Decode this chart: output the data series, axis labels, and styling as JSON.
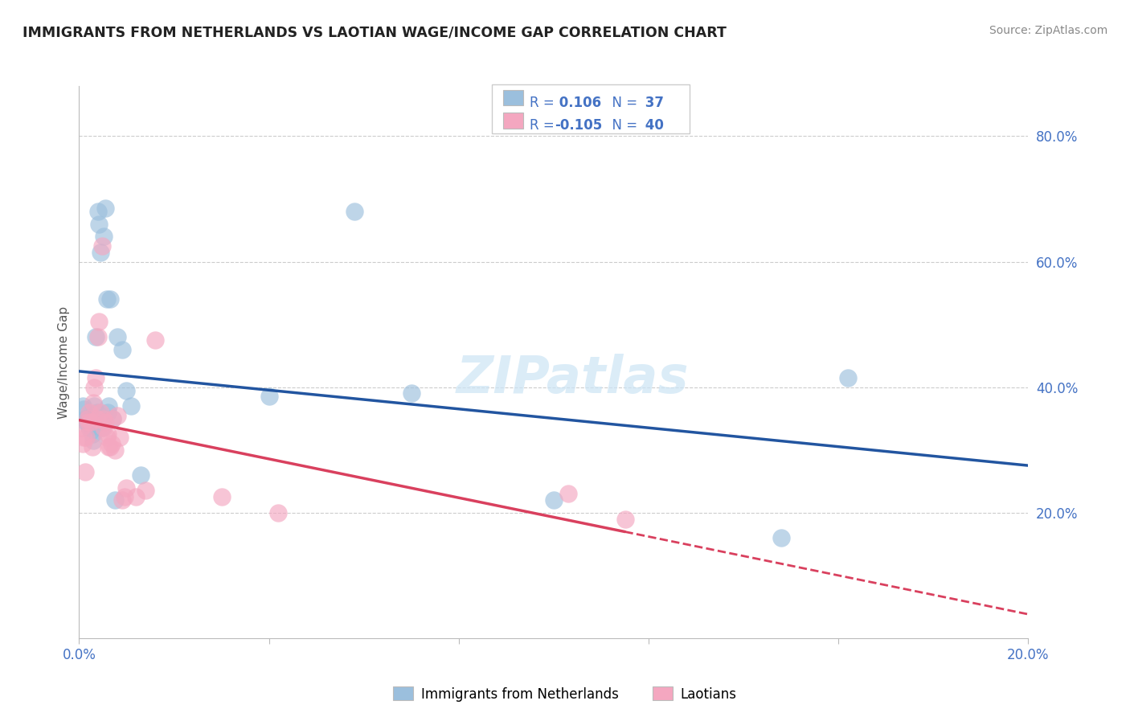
{
  "title": "IMMIGRANTS FROM NETHERLANDS VS LAOTIAN WAGE/INCOME GAP CORRELATION CHART",
  "source": "Source: ZipAtlas.com",
  "ylabel": "Wage/Income Gap",
  "xlim": [
    0.0,
    0.2
  ],
  "ylim": [
    0.0,
    0.88
  ],
  "x_tick_positions": [
    0.0,
    0.04,
    0.08,
    0.12,
    0.16,
    0.2
  ],
  "x_tick_labels": [
    "0.0%",
    "",
    "",
    "",
    "",
    "20.0%"
  ],
  "y_tick_positions": [
    0.2,
    0.4,
    0.6,
    0.8
  ],
  "y_tick_labels": [
    "20.0%",
    "40.0%",
    "60.0%",
    "80.0%"
  ],
  "legend_blue_r": "0.106",
  "legend_blue_n": "37",
  "legend_pink_r": "-0.105",
  "legend_pink_n": "40",
  "legend_label_blue": "Immigrants from Netherlands",
  "legend_label_pink": "Laotians",
  "blue_scatter_color": "#9bbfdd",
  "pink_scatter_color": "#f4a7c0",
  "blue_line_color": "#2255a0",
  "pink_line_color": "#d9405e",
  "watermark": "ZIPatlas",
  "watermark_color": "#cce5f5",
  "netherlands_x": [
    0.0008,
    0.001,
    0.0012,
    0.0015,
    0.0018,
    0.002,
    0.0022,
    0.0025,
    0.0028,
    0.003,
    0.0032,
    0.0035,
    0.0038,
    0.004,
    0.0042,
    0.0045,
    0.0048,
    0.005,
    0.0052,
    0.0055,
    0.0058,
    0.006,
    0.0062,
    0.0065,
    0.007,
    0.0075,
    0.008,
    0.009,
    0.01,
    0.011,
    0.013,
    0.04,
    0.058,
    0.07,
    0.1,
    0.148,
    0.162
  ],
  "netherlands_y": [
    0.37,
    0.365,
    0.35,
    0.345,
    0.35,
    0.34,
    0.335,
    0.33,
    0.325,
    0.315,
    0.37,
    0.48,
    0.36,
    0.68,
    0.66,
    0.615,
    0.335,
    0.345,
    0.64,
    0.685,
    0.54,
    0.36,
    0.37,
    0.54,
    0.35,
    0.22,
    0.48,
    0.46,
    0.395,
    0.37,
    0.26,
    0.385,
    0.68,
    0.39,
    0.22,
    0.16,
    0.415
  ],
  "laotian_x": [
    0.0005,
    0.0008,
    0.001,
    0.0012,
    0.0015,
    0.0018,
    0.002,
    0.0022,
    0.0025,
    0.0028,
    0.003,
    0.0032,
    0.0035,
    0.0038,
    0.004,
    0.0042,
    0.0045,
    0.0048,
    0.005,
    0.0052,
    0.0055,
    0.0058,
    0.006,
    0.0062,
    0.0065,
    0.0068,
    0.007,
    0.0075,
    0.008,
    0.0085,
    0.009,
    0.0095,
    0.01,
    0.012,
    0.014,
    0.016,
    0.03,
    0.042,
    0.103,
    0.115
  ],
  "laotian_y": [
    0.335,
    0.31,
    0.32,
    0.265,
    0.32,
    0.35,
    0.345,
    0.36,
    0.345,
    0.305,
    0.375,
    0.4,
    0.415,
    0.35,
    0.48,
    0.505,
    0.36,
    0.625,
    0.35,
    0.335,
    0.345,
    0.32,
    0.325,
    0.305,
    0.305,
    0.31,
    0.35,
    0.3,
    0.355,
    0.32,
    0.22,
    0.225,
    0.24,
    0.225,
    0.235,
    0.475,
    0.225,
    0.2,
    0.23,
    0.19
  ],
  "grid_color": "#cccccc",
  "spine_color": "#bbbbbb",
  "tick_label_color": "#4472c4",
  "ylabel_color": "#555555",
  "title_color": "#222222",
  "source_color": "#888888"
}
